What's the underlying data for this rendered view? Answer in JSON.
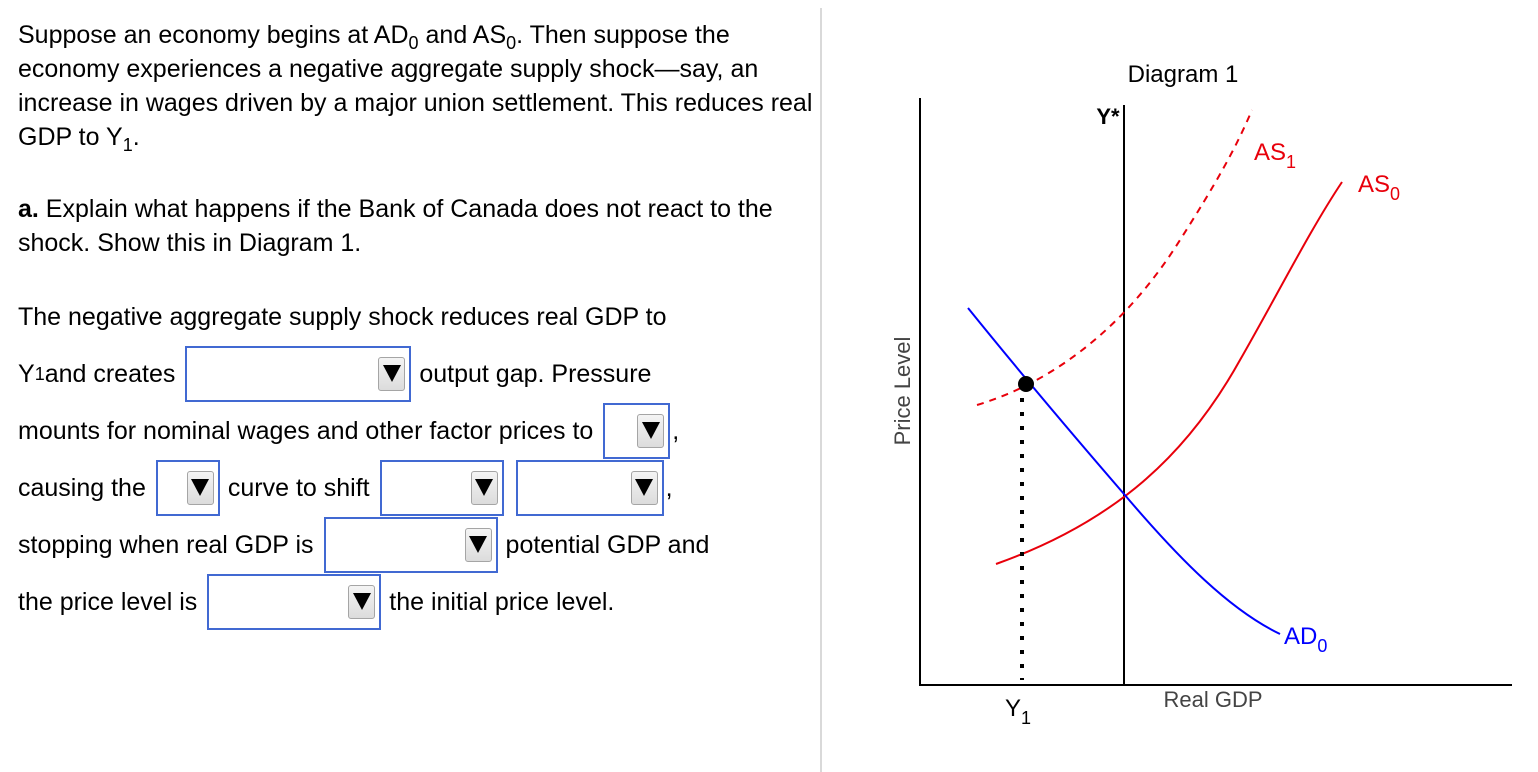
{
  "intro": {
    "part1": "Suppose an economy begins at AD",
    "sub_ad": "0",
    "part2": " and AS",
    "sub_as": "0",
    "part3": ". Then suppose the economy experiences a negative aggregate supply shock—say, an increase in wages driven by a major union settlement. This reduces real GDP to Y",
    "sub_y": "1",
    "part4": "."
  },
  "question": {
    "label": "a.",
    "text": " Explain what happens if the Bank of Canada does not react to the shock. Show this in Diagram 1."
  },
  "answer": {
    "line1": "The negative aggregate supply shock reduces real GDP to",
    "line2_a": "Y",
    "line2_sub": "1",
    "line2_b": " and creates",
    "line2_c": "output gap. Pressure",
    "line3_a": "mounts for nominal wages and other factor prices to",
    "line3_b": ",",
    "line4_a": "causing the",
    "line4_b": "curve to shift",
    "line4_c": ",",
    "line5_a": "stopping when real GDP is",
    "line5_b": "potential GDP and",
    "line6_a": "the price level is",
    "line6_b": "the initial price level."
  },
  "dropdowns": {
    "output_gap": "",
    "factor_prices": "",
    "curve": "",
    "shift_direction": "",
    "shift_amount": "",
    "gdp_relation": "",
    "price_relation": ""
  },
  "diagram": {
    "title": "Diagram 1",
    "y_axis_label": "Price Level",
    "x_axis_label": "Real GDP",
    "ystar_label": "Y*",
    "y1_label": "Y",
    "y1_sub": "1",
    "as1_label": "AS",
    "as1_sub": "1",
    "as0_label": "AS",
    "as0_sub": "0",
    "ad0_label": "AD",
    "ad0_sub": "0",
    "colors": {
      "as": "#e8000b",
      "ad": "#0000ff",
      "dropdown_border": "#4169d2"
    }
  }
}
